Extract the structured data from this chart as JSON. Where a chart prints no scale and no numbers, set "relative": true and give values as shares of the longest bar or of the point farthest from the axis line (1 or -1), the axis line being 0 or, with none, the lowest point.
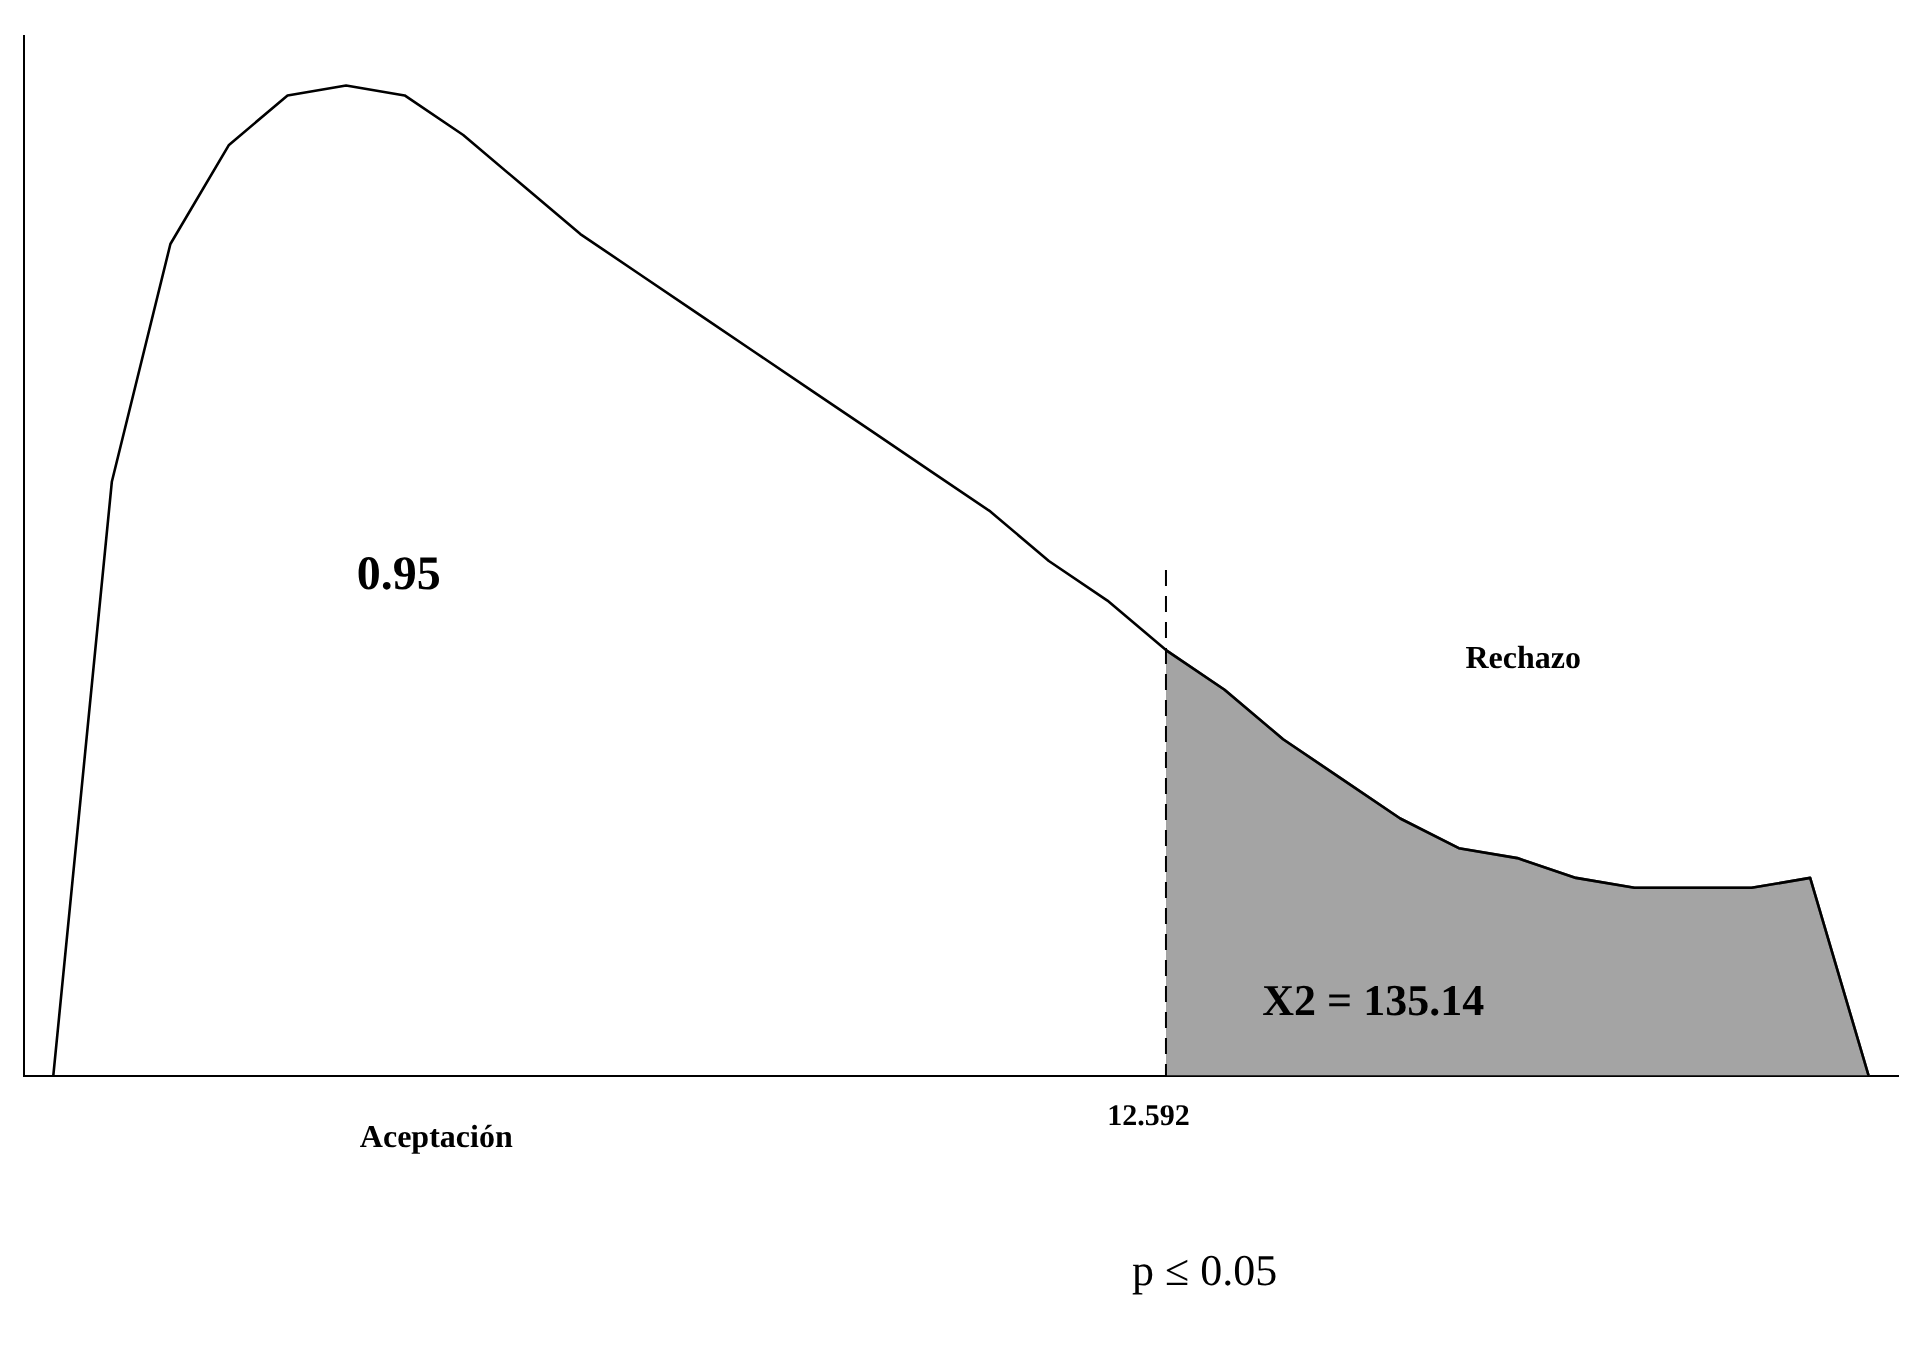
{
  "chart_data": {
    "type": "line",
    "relative": true,
    "categories": [
      null,
      null,
      null,
      null,
      null,
      null,
      null,
      null,
      null,
      null,
      null,
      null,
      null,
      null,
      null,
      null,
      null,
      null,
      null,
      null,
      null,
      null,
      null,
      null,
      null,
      null,
      null,
      null,
      null,
      null,
      null,
      null
    ],
    "series": [
      {
        "color": "#000000",
        "values": [
          0,
          0.6,
          0.84,
          0.94,
          0.99,
          1.0,
          0.99,
          0.95,
          0.9,
          0.85,
          0.81,
          0.77,
          0.73,
          0.69,
          0.65,
          0.61,
          0.57,
          0.52,
          0.48,
          0.43,
          0.39,
          0.34,
          0.3,
          0.26,
          0.23,
          0.22,
          0.2,
          0.19,
          0.19,
          0.19,
          0.2,
          0
        ]
      },
      {
        "type": "area",
        "color": "#555555",
        "line_style": "dashed",
        "values": [
          null,
          null,
          null,
          null,
          null,
          null,
          null,
          null,
          null,
          null,
          null,
          null,
          null,
          null,
          null,
          null,
          null,
          null,
          null,
          0.43,
          0.39,
          0.34,
          0.3,
          0.26,
          0.23,
          0.22,
          0.2,
          0.19,
          0.19,
          0.19,
          0.2,
          0
        ]
      }
    ],
    "annotations": [
      "0.95",
      "Rechazo",
      "X2 = 135.14",
      "Aceptación",
      "p ≤ 0.05",
      "12.592"
    ],
    "grid": false,
    "legend": false,
    "tick_labels": false,
    "marker": "none",
    "line_style": "solid"
  }
}
